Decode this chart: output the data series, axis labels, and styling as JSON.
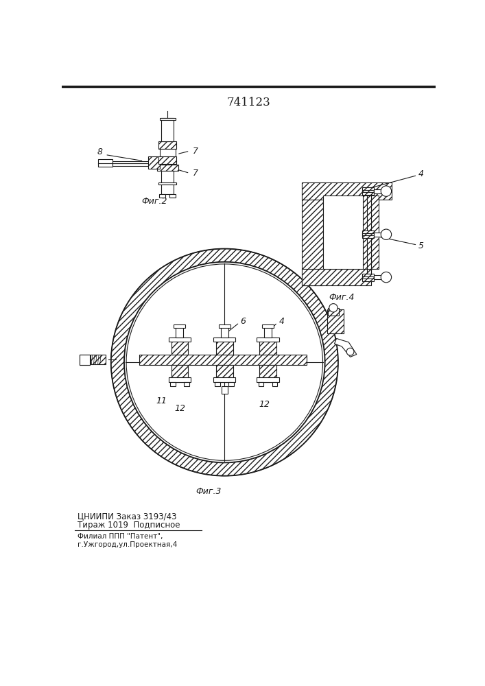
{
  "patent_number": "741123",
  "bg_color": "#ffffff",
  "line_color": "#1a1a1a",
  "fig2_label": "Фиг.2",
  "fig3_label": "Фиг.3",
  "fig4_label": "Фиг.4",
  "bottom_text1": "ЦНИИПИ Заказ 3193/43",
  "bottom_text2": "Тираж 1019  Подписное",
  "bottom_text3": "Филиал ППП \"Патент\",",
  "bottom_text4": "г.Ужгород,ул.Проектная,4",
  "label_8": "8",
  "label_7a": "7",
  "label_7b": "7",
  "label_4a": "4",
  "label_6": "6",
  "label_11": "11",
  "label_12a": "12",
  "label_12b": "12",
  "label_4b": "4",
  "label_5": "5"
}
